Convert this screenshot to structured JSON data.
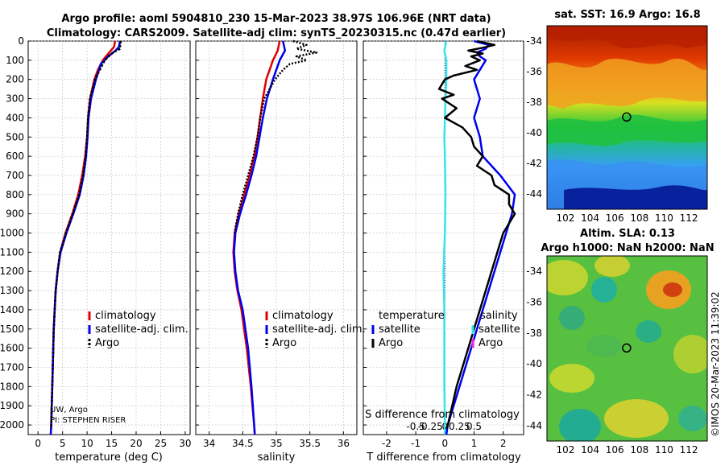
{
  "title": {
    "line1": "Argo profile: aoml 5904810_230 15-Mar-2023 38.97S 106.96E (NRT data)",
    "line2": "Climatology: CARS2009. Satellite-adj clim: synTS_20230315.nc (0.47d earlier)"
  },
  "credit": {
    "line1": "UW, Argo",
    "line2": "PI: STEPHEN RISER"
  },
  "watermark": "©IMOS 20-Mar-2023 11:39:02",
  "colors": {
    "climatology": "#e00000",
    "satellite": "#0000ee",
    "argo": "#000000",
    "sat_salinity": "#33e5ee",
    "argo_salinity": "#ee22ee"
  },
  "chart_data": [
    {
      "type": "line",
      "id": "temperature",
      "xlabel": "temperature (deg C)",
      "xlim": [
        -2,
        31
      ],
      "xticks": [
        0,
        5,
        10,
        15,
        20,
        25,
        30
      ],
      "ylim": [
        2050,
        0
      ],
      "yticks": [
        0,
        100,
        200,
        300,
        400,
        500,
        600,
        700,
        800,
        900,
        1000,
        1100,
        1200,
        1300,
        1400,
        1500,
        1600,
        1700,
        1800,
        1900,
        2000
      ],
      "legend": [
        "climatology",
        "satellite-adj. clim.",
        "Argo"
      ],
      "series": [
        {
          "name": "climatology",
          "depth": [
            0,
            30,
            60,
            100,
            150,
            200,
            300,
            400,
            500,
            600,
            700,
            800,
            900,
            1000,
            1100,
            1200,
            1300,
            1500,
            1700,
            2000,
            2050
          ],
          "values": [
            15.7,
            15.5,
            14.5,
            13.2,
            12.2,
            11.5,
            10.6,
            10.2,
            10.0,
            9.6,
            9.0,
            8.2,
            7.0,
            5.6,
            4.5,
            4.0,
            3.6,
            3.2,
            3.0,
            2.7,
            2.6
          ]
        },
        {
          "name": "satellite-adj. clim.",
          "depth": [
            0,
            30,
            50,
            80,
            120,
            200,
            300,
            400,
            500,
            600,
            700,
            800,
            900,
            1000,
            1100,
            1200,
            1300,
            1500,
            1700,
            2000,
            2050
          ],
          "values": [
            16.7,
            16.5,
            15.8,
            14.3,
            12.8,
            11.8,
            10.8,
            10.3,
            10.1,
            9.8,
            9.3,
            8.5,
            7.2,
            5.8,
            4.6,
            4.0,
            3.6,
            3.2,
            3.0,
            2.7,
            2.6
          ]
        },
        {
          "name": "Argo",
          "depth": [
            0,
            20,
            40,
            55,
            70,
            100,
            150,
            200,
            300,
            400,
            500,
            600,
            700,
            800,
            900,
            1000,
            1100,
            1200,
            1300,
            1500,
            1700,
            2000,
            2020
          ],
          "values": [
            16.9,
            16.7,
            16.8,
            15.6,
            14.8,
            13.6,
            12.6,
            11.6,
            10.6,
            10.2,
            10.0,
            9.7,
            9.2,
            8.4,
            7.1,
            5.7,
            4.5,
            4.0,
            3.6,
            3.2,
            3.0,
            2.7,
            2.7
          ]
        }
      ]
    },
    {
      "type": "line",
      "id": "salinity",
      "xlabel": "salinity",
      "xlim": [
        33.8,
        36.2
      ],
      "xticks": [
        34,
        34.5,
        35,
        35.5,
        36
      ],
      "xtick_labels": [
        "34",
        "34.5",
        "35",
        "35.5",
        "36"
      ],
      "ylim": [
        2050,
        0
      ],
      "legend": [
        "climatology",
        "satellite-adj. clim.",
        "Argo"
      ],
      "series": [
        {
          "name": "climatology",
          "depth": [
            0,
            50,
            100,
            150,
            200,
            300,
            400,
            500,
            600,
            700,
            800,
            900,
            1000,
            1100,
            1200,
            1300,
            1400,
            1600,
            1800,
            2000,
            2050
          ],
          "values": [
            35.05,
            35.02,
            34.95,
            34.9,
            34.85,
            34.8,
            34.76,
            34.72,
            34.67,
            34.6,
            34.52,
            34.44,
            34.38,
            34.36,
            34.38,
            34.42,
            34.48,
            34.56,
            34.62,
            34.67,
            34.68
          ]
        },
        {
          "name": "satellite-adj. clim.",
          "depth": [
            0,
            50,
            100,
            150,
            200,
            300,
            400,
            500,
            600,
            700,
            800,
            900,
            1000,
            1100,
            1200,
            1300,
            1400,
            1600,
            1800,
            2000,
            2050
          ],
          "values": [
            35.1,
            35.13,
            35.05,
            35.0,
            34.95,
            34.86,
            34.8,
            34.75,
            34.7,
            34.63,
            34.55,
            34.46,
            34.39,
            34.37,
            34.39,
            34.43,
            34.5,
            34.58,
            34.63,
            34.67,
            34.68
          ]
        },
        {
          "name": "Argo",
          "depth": [
            0,
            20,
            40,
            60,
            80,
            100,
            120,
            150,
            200,
            250,
            300,
            400,
            500,
            600,
            700,
            800,
            900,
            1000
          ],
          "values": [
            35.25,
            35.45,
            35.3,
            35.6,
            35.3,
            35.45,
            35.2,
            35.1,
            34.98,
            34.9,
            34.82,
            34.76,
            34.72,
            34.66,
            34.58,
            34.5,
            34.43,
            34.38
          ]
        }
      ]
    },
    {
      "type": "line",
      "id": "difference",
      "xlabel": "T difference from climatology",
      "x2label": "S difference from climatology",
      "xlim": [
        -2.8,
        2.7
      ],
      "xticks": [
        -2,
        -1,
        0,
        1,
        2
      ],
      "x2ticks": [
        -0.5,
        -0.25,
        0,
        0.25,
        0.5
      ],
      "x2tick_labels": [
        "-0.5",
        "-0.25",
        "0",
        "0.25",
        "0.5"
      ],
      "ylim": [
        2050,
        0
      ],
      "legend_temperature": [
        "temperature",
        "satellite",
        "Argo"
      ],
      "legend_salinity": [
        "salinity",
        "satellite",
        "Argo"
      ],
      "series": [
        {
          "name": "T satellite",
          "depth": [
            0,
            20,
            40,
            60,
            80,
            100,
            150,
            200,
            300,
            400,
            500,
            600,
            700,
            800,
            900,
            1000,
            1200,
            1400,
            1600,
            1800,
            2000,
            2050
          ],
          "values": [
            1.0,
            1.5,
            1.4,
            1.1,
            1.2,
            1.4,
            1.2,
            1.0,
            1.2,
            1.0,
            1.2,
            1.3,
            1.9,
            2.4,
            2.3,
            2.1,
            1.7,
            1.3,
            0.9,
            0.5,
            0.1,
            0.05
          ]
        },
        {
          "name": "T Argo",
          "depth": [
            0,
            20,
            35,
            50,
            65,
            80,
            100,
            130,
            150,
            180,
            200,
            250,
            280,
            300,
            350,
            400,
            450,
            500,
            550,
            600,
            650,
            700,
            750,
            800,
            850,
            900,
            950,
            1000,
            1200,
            1400,
            1600,
            1800,
            2000,
            2020
          ],
          "values": [
            1.1,
            1.7,
            1.3,
            0.8,
            1.3,
            0.9,
            1.2,
            0.7,
            1.1,
            0.3,
            0.0,
            -0.2,
            0.3,
            -0.1,
            0.4,
            0.0,
            0.6,
            0.9,
            1.0,
            1.3,
            1.1,
            1.6,
            1.7,
            2.2,
            2.2,
            2.4,
            2.2,
            2.0,
            1.6,
            1.2,
            0.8,
            0.4,
            0.1,
            0.05
          ]
        },
        {
          "name": "S satellite",
          "depth": [
            0,
            50,
            100,
            200,
            300,
            400,
            500,
            600,
            800,
            1000,
            1200,
            1400,
            1600,
            1800,
            2000,
            2050
          ],
          "values": [
            0.05,
            -0.02,
            0.05,
            0.05,
            0.02,
            0.0,
            -0.02,
            0.0,
            0.02,
            0.0,
            -0.05,
            -0.02,
            -0.02,
            -0.02,
            0.0,
            0.0
          ]
        },
        {
          "name": "Zero line",
          "depth": [
            0,
            2050
          ],
          "values": [
            0,
            0
          ]
        }
      ]
    },
    {
      "type": "heatmap",
      "id": "sst_map",
      "title": "sat. SST: 16.9 Argo: 16.8",
      "xticks": [
        102,
        104,
        106,
        108,
        110,
        112
      ],
      "yticks": [
        -34,
        -36,
        -38,
        -40,
        -42,
        -44
      ],
      "xlim": [
        100.5,
        113.5
      ],
      "ylim": [
        -45,
        -33
      ],
      "marker": {
        "lon": 106.96,
        "lat": -38.97
      }
    },
    {
      "type": "heatmap",
      "id": "sla_map",
      "title": "Altim. SLA: 0.13",
      "subtitle": "Argo h1000: NaN h2000: NaN",
      "xticks": [
        102,
        104,
        106,
        108,
        110,
        112
      ],
      "yticks": [
        -34,
        -36,
        -38,
        -40,
        -42,
        -44
      ],
      "xlim": [
        100.5,
        113.5
      ],
      "ylim": [
        -45,
        -33
      ],
      "marker": {
        "lon": 106.96,
        "lat": -38.97
      }
    }
  ]
}
